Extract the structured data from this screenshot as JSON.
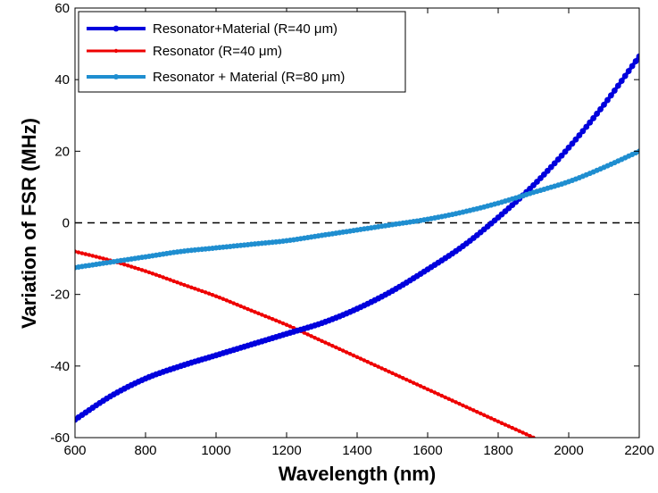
{
  "chart_data": {
    "type": "line",
    "title": "",
    "xlabel": "Wavelength (nm)",
    "ylabel": "Variation of FSR (MHz)",
    "xlim": [
      600,
      2200
    ],
    "ylim": [
      -60,
      60
    ],
    "xticks": [
      600,
      800,
      1000,
      1200,
      1400,
      1600,
      1800,
      2000,
      2200
    ],
    "yticks": [
      -60,
      -40,
      -20,
      0,
      20,
      40,
      60
    ],
    "grid": false,
    "legend_position": "top-left",
    "reference_line": {
      "y": 0,
      "style": "dashed",
      "color": "#000000"
    },
    "series": [
      {
        "name": "Resonator+Material (R=40 μm)",
        "color": "#0000dd",
        "marker": "dot",
        "x": [
          600,
          700,
          800,
          900,
          1000,
          1100,
          1200,
          1300,
          1400,
          1500,
          1600,
          1700,
          1800,
          1900,
          2000,
          2100,
          2200
        ],
        "y": [
          -55,
          -48.5,
          -43.5,
          -40,
          -37,
          -34,
          -31,
          -28,
          -24,
          -19,
          -13,
          -6.5,
          1.5,
          10.5,
          21,
          33,
          46.5
        ]
      },
      {
        "name": "Resonator (R=40 μm)",
        "color": "#ee0000",
        "marker": "dot",
        "x": [
          600,
          700,
          800,
          900,
          1000,
          1100,
          1200,
          1300,
          1400,
          1500,
          1600,
          1700,
          1800,
          1900,
          1920
        ],
        "y": [
          -8,
          -10.5,
          -13.5,
          -17,
          -20.5,
          -24.5,
          -28.5,
          -33,
          -37.5,
          -42,
          -46.5,
          -51,
          -55.5,
          -60,
          -61
        ]
      },
      {
        "name": "Resonator + Material (R=80 μm)",
        "color": "#1f8ed0",
        "marker": "dot",
        "x": [
          600,
          700,
          800,
          900,
          1000,
          1100,
          1200,
          1300,
          1400,
          1500,
          1600,
          1700,
          1800,
          1900,
          2000,
          2100,
          2200
        ],
        "y": [
          -12.5,
          -11,
          -9.5,
          -8,
          -7,
          -6,
          -5,
          -3.5,
          -2,
          -0.5,
          1,
          3,
          5.5,
          8.5,
          11.5,
          15.5,
          20
        ]
      }
    ]
  }
}
